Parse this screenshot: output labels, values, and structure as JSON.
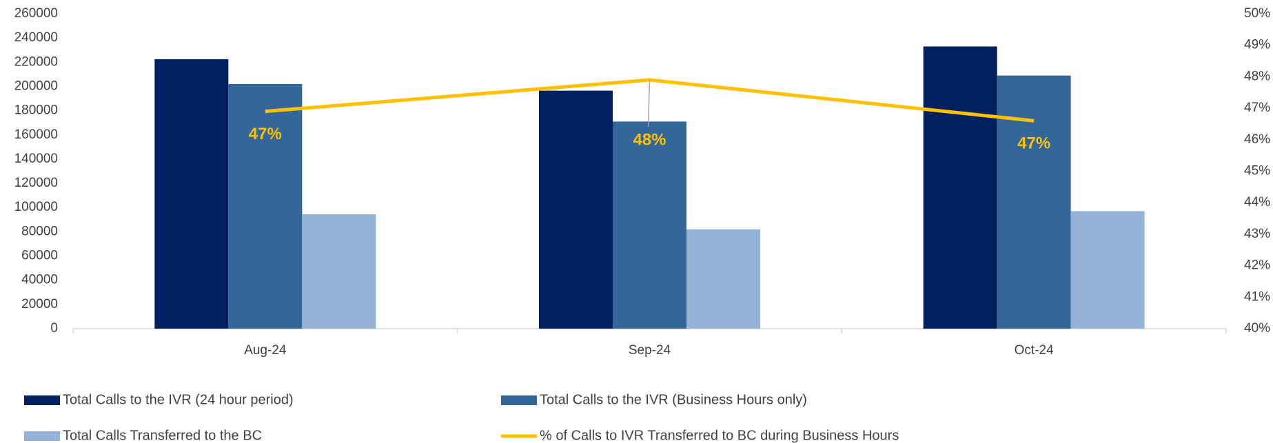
{
  "chart_data": {
    "type": "bar",
    "categories": [
      "Aug-24",
      "Sep-24",
      "Oct-24"
    ],
    "series": [
      {
        "name": "Total Calls to the IVR (24 hour period)",
        "color": "#002060",
        "values": [
          222500,
          196500,
          233000
        ]
      },
      {
        "name": "Total Calls to the IVR (Business Hours only)",
        "color": "#336699",
        "values": [
          202000,
          171000,
          209000
        ]
      },
      {
        "name": "Total Calls Transferred to the BC",
        "color": "#95b3d7",
        "values": [
          94500,
          82000,
          97000
        ]
      },
      {
        "name": "% of Calls to IVR Transferred to BC during Business Hours",
        "color": "#ffc000",
        "type": "line",
        "axis": "y2",
        "values": [
          46.9,
          47.9,
          46.6
        ],
        "value_labels": [
          "47%",
          "48%",
          "47%"
        ]
      }
    ],
    "ylim": [
      0,
      260000
    ],
    "yticks": [
      0,
      20000,
      40000,
      60000,
      80000,
      100000,
      120000,
      140000,
      160000,
      180000,
      200000,
      220000,
      240000,
      260000
    ],
    "y2lim": [
      40,
      50
    ],
    "y2ticks": [
      {
        "value": 40,
        "label": "40%"
      },
      {
        "value": 41,
        "label": "41%"
      },
      {
        "value": 42,
        "label": "42%"
      },
      {
        "value": 43,
        "label": "43%"
      },
      {
        "value": 44,
        "label": "44%"
      },
      {
        "value": 45,
        "label": "45%"
      },
      {
        "value": 46,
        "label": "46%"
      },
      {
        "value": 47,
        "label": "47%"
      },
      {
        "value": 48,
        "label": "48%"
      },
      {
        "value": 49,
        "label": "49%"
      },
      {
        "value": 50,
        "label": "50%"
      }
    ],
    "grid": false,
    "legend": "bottom"
  }
}
